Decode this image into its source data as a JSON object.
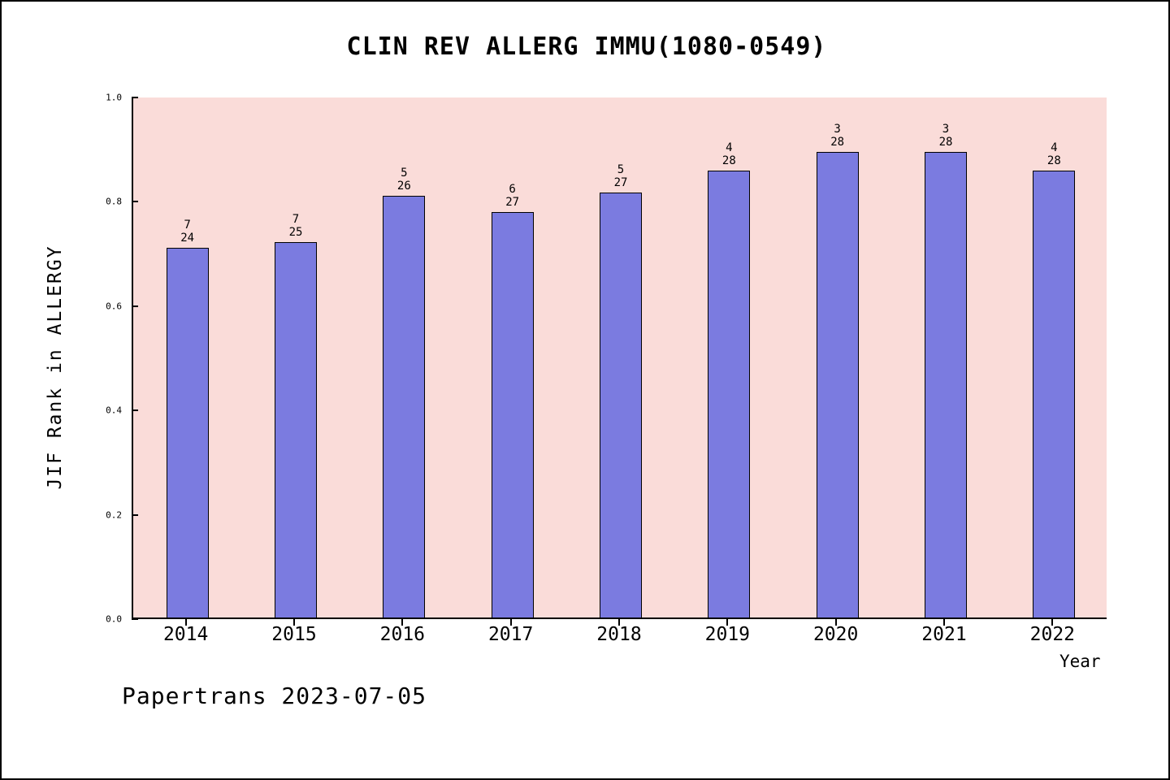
{
  "chart_data": {
    "type": "bar",
    "title": "CLIN REV ALLERG IMMU(1080-0549)",
    "xlabel": "Year",
    "ylabel": "JIF Rank in ALLERGY",
    "footer": "Papertrans 2023-07-05",
    "categories": [
      "2014",
      "2015",
      "2016",
      "2017",
      "2018",
      "2019",
      "2020",
      "2021",
      "2022"
    ],
    "ranks": [
      7,
      7,
      5,
      6,
      5,
      4,
      3,
      3,
      4
    ],
    "totals": [
      24,
      25,
      26,
      27,
      27,
      28,
      28,
      28,
      28
    ],
    "values": [
      0.708,
      0.72,
      0.808,
      0.778,
      0.815,
      0.857,
      0.893,
      0.893,
      0.857
    ],
    "ylim": [
      0.0,
      1.0
    ],
    "yticks": [
      "0.0",
      "0.2",
      "0.4",
      "0.6",
      "0.8",
      "1.0"
    ],
    "ytick_values": [
      0.0,
      0.2,
      0.4,
      0.6,
      0.8,
      1.0
    ],
    "bar_color": "#7b7be0",
    "plot_bg_color": "#fadcd9",
    "legend": "none",
    "grid": false
  }
}
